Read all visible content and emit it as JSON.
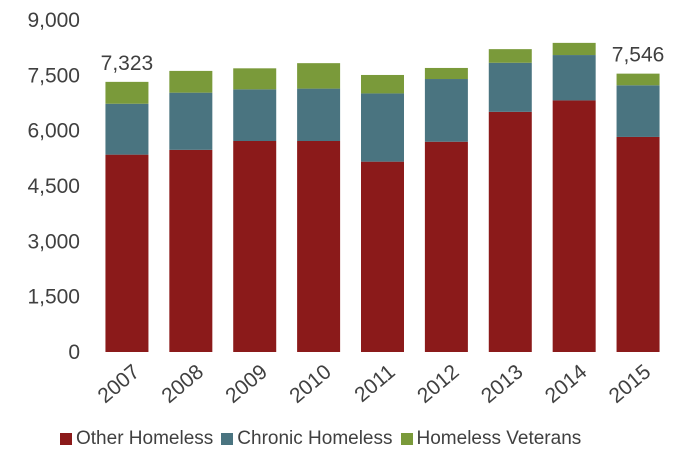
{
  "chart_data": {
    "type": "bar",
    "stacked": true,
    "title": "",
    "xlabel": "",
    "ylabel": "",
    "ylim": [
      0,
      9000
    ],
    "y_ticks": [
      0,
      1500,
      3000,
      4500,
      6000,
      7500,
      9000
    ],
    "y_tick_labels": [
      "0",
      "1,500",
      "3,000",
      "4,500",
      "6,000",
      "7,500",
      "9,000"
    ],
    "categories": [
      "2007",
      "2008",
      "2009",
      "2010",
      "2011",
      "2012",
      "2013",
      "2014",
      "2015"
    ],
    "series": [
      {
        "name": "Other Homeless",
        "color": "#8b1a1a",
        "values": [
          5350,
          5480,
          5720,
          5720,
          5160,
          5700,
          6510,
          6820,
          5830
        ]
      },
      {
        "name": "Chronic Homeless",
        "color": "#4a7480",
        "values": [
          1380,
          1550,
          1400,
          1420,
          1850,
          1700,
          1330,
          1230,
          1400
        ]
      },
      {
        "name": "Homeless Veterans",
        "color": "#7a9a3a",
        "values": [
          593,
          590,
          570,
          690,
          500,
          300,
          370,
          330,
          316
        ]
      }
    ],
    "annotations": [
      {
        "category": "2007",
        "text": "7,323"
      },
      {
        "category": "2015",
        "text": "7,546"
      }
    ],
    "grid": false,
    "legend_position": "bottom"
  }
}
